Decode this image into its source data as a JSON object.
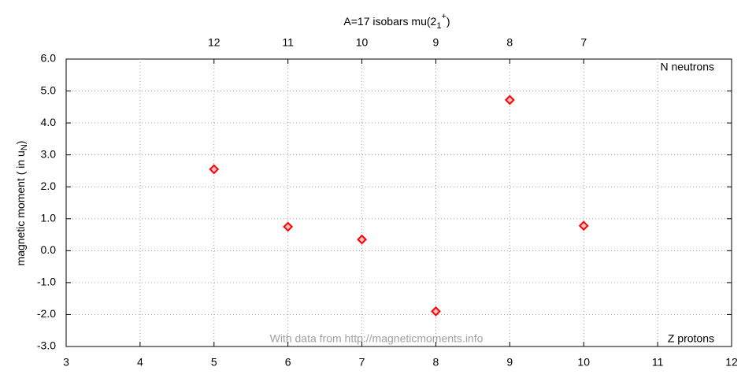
{
  "chart_data": {
    "type": "scatter",
    "title": "A=17 isobars mu(2",
    "title_subscript": "1",
    "title_superscript": "+",
    "title_end": ")",
    "ylabel": "magnetic moment ( in u",
    "ylabel_subscript": "N",
    "ylabel_end": ")",
    "xlabel": "Z protons",
    "x2label": "N neutrons",
    "annotation": "With data from http://magneticmoments.info",
    "x": [
      5,
      6,
      7,
      8,
      9,
      10
    ],
    "values": [
      2.55,
      0.75,
      0.35,
      -1.9,
      4.72,
      0.78
    ],
    "color": "#ff0000",
    "xlim": [
      3,
      12
    ],
    "xticks": [
      3,
      4,
      5,
      6,
      7,
      8,
      9,
      10,
      11,
      12
    ],
    "x2lim": [
      3,
      12
    ],
    "x2ticks": [
      {
        "value": 5,
        "label": "12"
      },
      {
        "value": 6,
        "label": "11"
      },
      {
        "value": 7,
        "label": "10"
      },
      {
        "value": 8,
        "label": "9"
      },
      {
        "value": 9,
        "label": "8"
      },
      {
        "value": 10,
        "label": "7"
      }
    ],
    "ylim": [
      -3,
      6
    ],
    "yticks": [
      {
        "value": -3,
        "label": "-3.0"
      },
      {
        "value": -2,
        "label": "-2.0"
      },
      {
        "value": -1,
        "label": "-1.0"
      },
      {
        "value": 0,
        "label": "0.0"
      },
      {
        "value": 1,
        "label": "1.0"
      },
      {
        "value": 2,
        "label": "2.0"
      },
      {
        "value": 3,
        "label": "3.0"
      },
      {
        "value": 4,
        "label": "4.0"
      },
      {
        "value": 5,
        "label": "5.0"
      },
      {
        "value": 6,
        "label": "6.0"
      }
    ],
    "grid": true
  }
}
